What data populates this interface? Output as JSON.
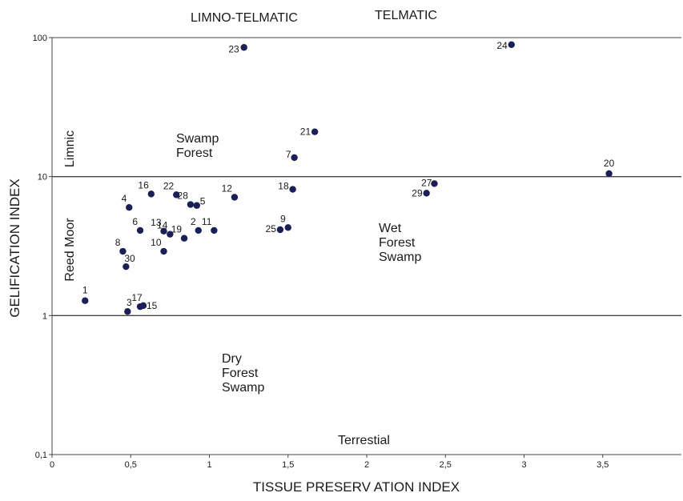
{
  "chart_data": {
    "type": "scatter",
    "xlabel": "TISSUE PRESERV ATION INDEX",
    "ylabel": "GELIFICATION INDEX",
    "xlim": [
      0,
      4
    ],
    "ylim": [
      0.1,
      100
    ],
    "y_scale": "log",
    "x_ticks": [
      {
        "value": 0,
        "label": "0"
      },
      {
        "value": 0.5,
        "label": "0,5"
      },
      {
        "value": 1,
        "label": "1"
      },
      {
        "value": 1.5,
        "label": "1,5"
      },
      {
        "value": 2,
        "label": "2"
      },
      {
        "value": 2.5,
        "label": "2,5"
      },
      {
        "value": 3,
        "label": "3"
      },
      {
        "value": 3.5,
        "label": "3,5"
      }
    ],
    "y_ticks": [
      {
        "value": 0.1,
        "label": "0,1"
      },
      {
        "value": 1,
        "label": "1"
      },
      {
        "value": 10,
        "label": "10"
      },
      {
        "value": 100,
        "label": "100"
      }
    ],
    "reference_lines_y": [
      1,
      10
    ],
    "grid": false,
    "top_labels": [
      "LIMNO-TELMATIC",
      "TELMATIC"
    ],
    "region_labels": [
      {
        "key": "limnic",
        "lines": [
          "Limnic"
        ],
        "rotated": true
      },
      {
        "key": "reed",
        "lines": [
          "Reed Moor"
        ],
        "rotated": true
      },
      {
        "key": "swamp",
        "lines": [
          "Swamp",
          "Forest"
        ],
        "rotated": false
      },
      {
        "key": "wet",
        "lines": [
          "Wet",
          "Forest",
          "Swamp"
        ],
        "rotated": false
      },
      {
        "key": "dry",
        "lines": [
          "Dry",
          "Forest",
          "Swamp"
        ],
        "rotated": false
      },
      {
        "key": "terrestial",
        "lines": [
          "Terrestial"
        ],
        "rotated": false
      }
    ],
    "points": [
      {
        "label": "1",
        "x": 0.21,
        "y": 1.28
      },
      {
        "label": "2",
        "x": 0.93,
        "y": 4.1
      },
      {
        "label": "3",
        "x": 0.48,
        "y": 1.07
      },
      {
        "label": "4",
        "x": 0.49,
        "y": 6.0
      },
      {
        "label": "5",
        "x": 0.92,
        "y": 6.2
      },
      {
        "label": "6",
        "x": 0.56,
        "y": 4.1
      },
      {
        "label": "7",
        "x": 1.54,
        "y": 13.7
      },
      {
        "label": "8",
        "x": 0.45,
        "y": 2.9
      },
      {
        "label": "9",
        "x": 1.5,
        "y": 4.3
      },
      {
        "label": "10",
        "x": 0.71,
        "y": 2.9
      },
      {
        "label": "11",
        "x": 1.03,
        "y": 4.1
      },
      {
        "label": "12",
        "x": 1.16,
        "y": 7.1
      },
      {
        "label": "13",
        "x": 0.71,
        "y": 4.05
      },
      {
        "label": "14",
        "x": 0.75,
        "y": 3.85
      },
      {
        "label": "15",
        "x": 0.58,
        "y": 1.18
      },
      {
        "label": "16",
        "x": 0.63,
        "y": 7.5
      },
      {
        "label": "17",
        "x": 0.56,
        "y": 1.16
      },
      {
        "label": "18",
        "x": 1.53,
        "y": 8.1
      },
      {
        "label": "19",
        "x": 0.84,
        "y": 3.6
      },
      {
        "label": "20",
        "x": 3.54,
        "y": 10.5
      },
      {
        "label": "21",
        "x": 1.67,
        "y": 21.0
      },
      {
        "label": "22",
        "x": 0.79,
        "y": 7.4
      },
      {
        "label": "23",
        "x": 1.22,
        "y": 85.0
      },
      {
        "label": "24",
        "x": 2.92,
        "y": 89.0
      },
      {
        "label": "25",
        "x": 1.45,
        "y": 4.15
      },
      {
        "label": "27",
        "x": 2.43,
        "y": 8.9
      },
      {
        "label": "28",
        "x": 0.88,
        "y": 6.3
      },
      {
        "label": "29",
        "x": 2.38,
        "y": 7.6
      },
      {
        "label": "30",
        "x": 0.47,
        "y": 2.25
      }
    ]
  }
}
